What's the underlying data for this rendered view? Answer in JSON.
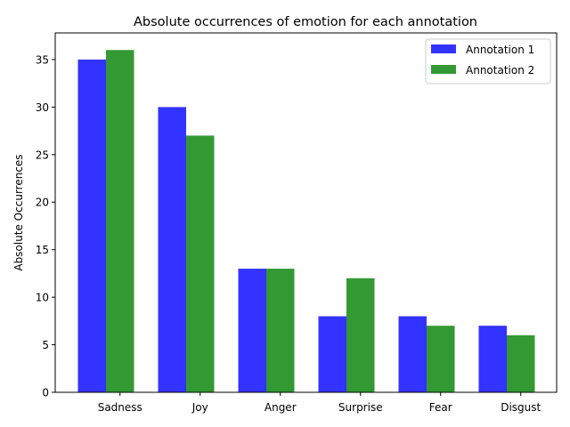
{
  "chart_data": {
    "type": "bar",
    "title": "Absolute occurrences of emotion for each annotation",
    "xlabel": "",
    "ylabel": "Absolute Occurrences",
    "categories": [
      "Sadness",
      "Joy",
      "Anger",
      "Surprise",
      "Fear",
      "Disgust"
    ],
    "series": [
      {
        "name": "Annotation 1",
        "values": [
          35,
          30,
          13,
          8,
          8,
          7
        ],
        "color": "#3333ff"
      },
      {
        "name": "Annotation 2",
        "values": [
          36,
          27,
          13,
          12,
          7,
          6
        ],
        "color": "#339933"
      }
    ],
    "ylim": [
      0,
      37.8
    ],
    "yticks": [
      0,
      5,
      10,
      15,
      20,
      25,
      30,
      35
    ],
    "grid": false,
    "legend": "top-right"
  }
}
